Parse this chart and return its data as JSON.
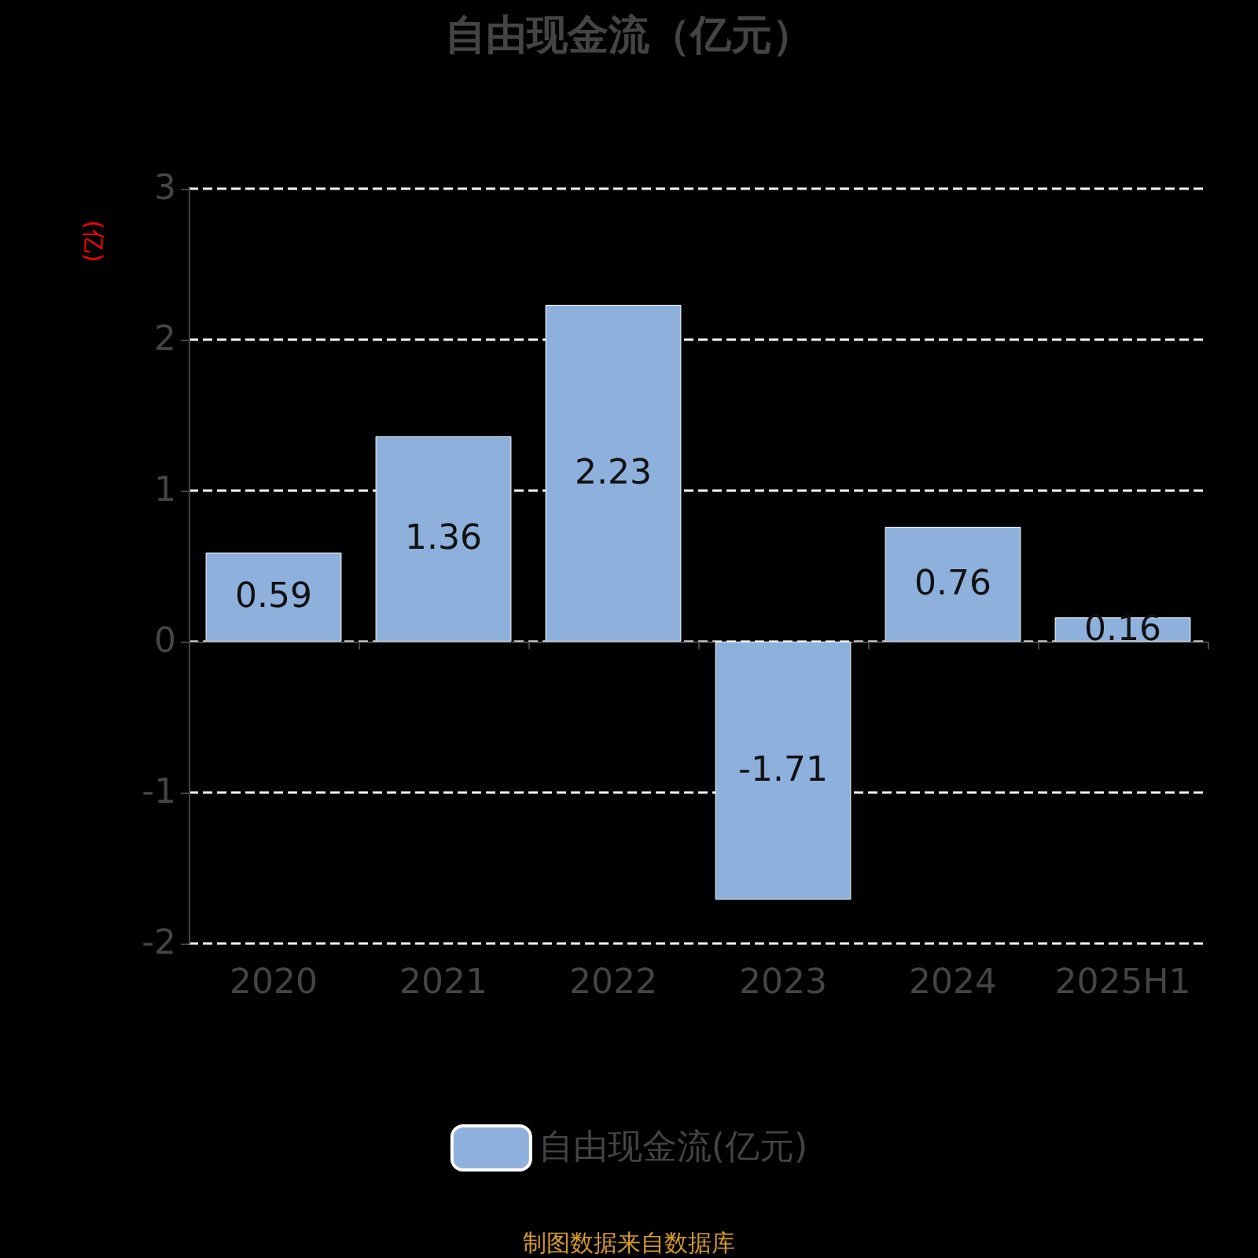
{
  "chart_data": {
    "type": "bar",
    "title": "自由现金流（亿元）",
    "ylabel": "(亿)",
    "categories": [
      "2020",
      "2021",
      "2022",
      "2023",
      "2024",
      "2025H1"
    ],
    "series": [
      {
        "name": "自由现金流(亿元)",
        "color": "#8eb0dc",
        "values": [
          0.59,
          1.36,
          2.23,
          -1.71,
          0.76,
          0.16
        ]
      }
    ],
    "ylim": [
      -2,
      3
    ],
    "yticks": [
      -2,
      -1,
      0,
      1,
      2,
      3
    ],
    "grid": "y",
    "legend": "bottom",
    "data_labels": true,
    "annotations": [
      "制图数据来自数据库"
    ]
  }
}
